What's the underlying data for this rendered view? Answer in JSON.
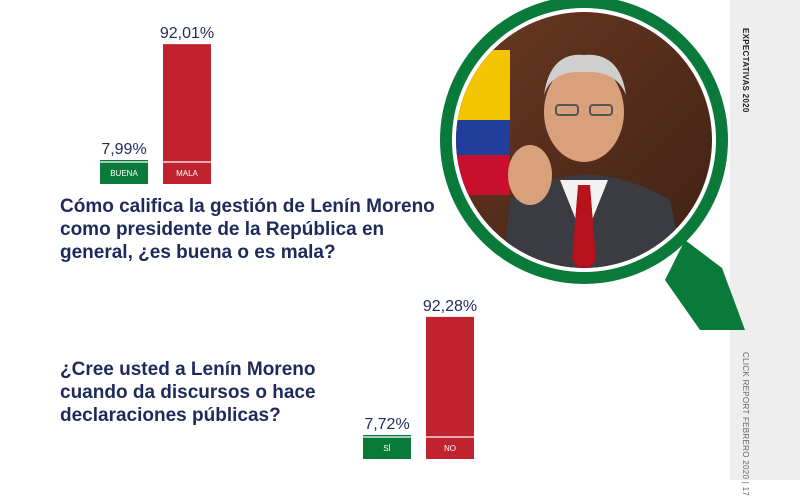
{
  "sidebar": {
    "top_label": "EXPECTATIVAS 2020",
    "bottom_label": "CLICK REPORT FEBRERO 2020 | 17"
  },
  "colors": {
    "green": "#0a7a3b",
    "red": "#c0232d",
    "navy": "#1e2a5c"
  },
  "chart_data": [
    {
      "type": "bar",
      "title": "Cómo califica la gestión de Lenín Moreno como presidente de la República en general, ¿es buena o es mala?",
      "categories": [
        "BUENA",
        "MALA"
      ],
      "values": [
        7.99,
        92.01
      ],
      "value_labels": [
        "7,99%",
        "92,01%"
      ],
      "colors": [
        "#0a7a3b",
        "#c0232d"
      ],
      "ylim": [
        0,
        100
      ]
    },
    {
      "type": "bar",
      "title": "¿Cree usted a Lenín Moreno cuando da discursos o hace declaraciones públicas?",
      "categories": [
        "SÍ",
        "NO"
      ],
      "values": [
        7.72,
        92.28
      ],
      "value_labels": [
        "7,72%",
        "92,28%"
      ],
      "colors": [
        "#0a7a3b",
        "#c0232d"
      ],
      "ylim": [
        0,
        100
      ]
    }
  ],
  "photo": {
    "icon": "magnifier-portrait-icon"
  }
}
